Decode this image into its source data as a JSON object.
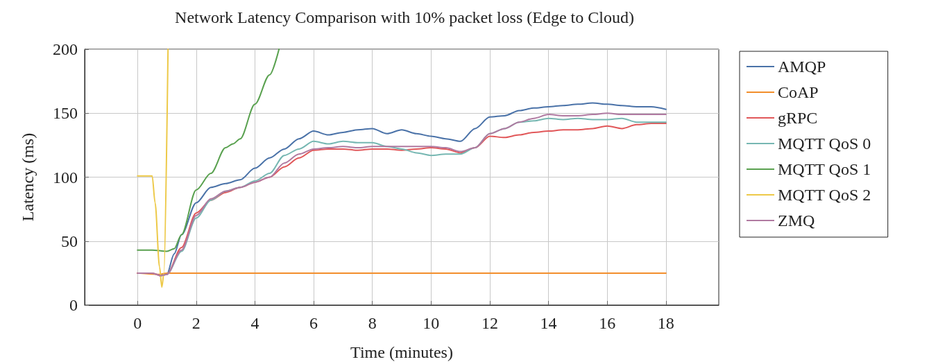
{
  "chart_data": {
    "type": "line",
    "title": "Network Latency Comparison with 10% packet loss (Edge to Cloud)",
    "xlabel": "Time (minutes)",
    "ylabel": "Latency (ms)",
    "xlim": [
      -1.8,
      19.8
    ],
    "xticks": [
      0,
      2,
      4,
      6,
      8,
      10,
      12,
      14,
      16,
      18
    ],
    "ylim": [
      0,
      200
    ],
    "yticks": [
      0,
      50,
      100,
      150,
      200
    ],
    "grid": true,
    "legend": "top right",
    "marker": "none",
    "line_style": "solid",
    "series": [
      {
        "name": "AMQP",
        "color": "#4a72a8",
        "x": [
          0.75,
          1,
          1.25,
          1.5,
          2,
          2.5,
          3,
          3.5,
          4,
          4.5,
          5,
          5.5,
          6,
          6.5,
          7,
          7.5,
          8,
          8.5,
          9,
          9.5,
          10,
          10.5,
          11,
          11.5,
          12,
          12.5,
          13,
          13.5,
          14,
          14.5,
          15,
          15.5,
          16,
          16.5,
          17,
          17.5,
          18
        ],
        "values": [
          23,
          24,
          40,
          55,
          80,
          92,
          95,
          98,
          107,
          115,
          122,
          130,
          136,
          133,
          135,
          137,
          138,
          134,
          137,
          134,
          132,
          130,
          128,
          138,
          147,
          148,
          152,
          154,
          155,
          156,
          157,
          158,
          157,
          156,
          155,
          155,
          153
        ]
      },
      {
        "name": "CoAP",
        "color": "#f28e2b",
        "x": [
          0,
          0.75,
          1,
          6,
          12,
          18
        ],
        "values": [
          25,
          24,
          25,
          25,
          25,
          25
        ]
      },
      {
        "name": "gRPC",
        "color": "#e15759",
        "x": [
          0,
          0.5,
          0.8,
          1,
          1.5,
          2,
          2.5,
          3,
          3.5,
          4,
          4.5,
          5,
          5.5,
          6,
          6.5,
          7,
          7.5,
          8,
          8.5,
          9,
          9.5,
          10,
          10.5,
          11,
          11.5,
          12,
          12.5,
          13,
          13.5,
          14,
          14.5,
          15,
          15.5,
          16,
          16.5,
          17,
          17.5,
          18
        ],
        "values": [
          25,
          25,
          23,
          24,
          45,
          72,
          82,
          88,
          92,
          96,
          100,
          108,
          115,
          121,
          122,
          122,
          121,
          122,
          122,
          121,
          122,
          123,
          122,
          119,
          123,
          132,
          131,
          133,
          135,
          136,
          137,
          137,
          138,
          140,
          138,
          141,
          142,
          142
        ]
      },
      {
        "name": "MQTT QoS 0",
        "color": "#76b7b2",
        "x": [
          0.8,
          1,
          1.5,
          2,
          2.5,
          3,
          3.5,
          4,
          4.5,
          5,
          5.5,
          6,
          6.5,
          7,
          7.5,
          8,
          8.5,
          9,
          9.5,
          10,
          10.5,
          11,
          11.5,
          12,
          12.5,
          13,
          13.5,
          14,
          14.5,
          15,
          15.5,
          16,
          16.5,
          17,
          17.5,
          18
        ],
        "values": [
          23,
          24,
          42,
          68,
          82,
          89,
          92,
          97,
          103,
          117,
          122,
          128,
          126,
          128,
          127,
          127,
          124,
          122,
          119,
          117,
          118,
          118,
          123,
          134,
          138,
          143,
          144,
          146,
          145,
          146,
          145,
          145,
          146,
          143,
          143,
          143
        ]
      },
      {
        "name": "MQTT QoS 1",
        "color": "#59a14f",
        "x": [
          0,
          0.5,
          1,
          1.25,
          1.5,
          2,
          2.5,
          3,
          3.25,
          3.5,
          4,
          4.5,
          4.82
        ],
        "values": [
          43,
          43,
          42,
          44,
          55,
          90,
          103,
          123,
          126,
          130,
          157,
          180,
          200
        ]
      },
      {
        "name": "MQTT QoS 2",
        "color": "#edc948",
        "x": [
          0,
          0.5,
          0.6,
          0.75,
          0.83,
          0.9,
          1.04
        ],
        "values": [
          101,
          101,
          80,
          30,
          14,
          25,
          200
        ]
      },
      {
        "name": "ZMQ",
        "color": "#b07aa1",
        "x": [
          0,
          0.5,
          0.8,
          1,
          1.5,
          2,
          2.5,
          3,
          3.5,
          4,
          4.5,
          5,
          5.5,
          6,
          6.5,
          7,
          7.5,
          8,
          8.5,
          9,
          9.5,
          10,
          10.5,
          11,
          11.5,
          12,
          12.5,
          13,
          13.5,
          14,
          14.5,
          15,
          15.5,
          16,
          16.5,
          17,
          17.5,
          18
        ],
        "values": [
          25,
          25,
          23,
          24,
          43,
          70,
          83,
          89,
          92,
          96,
          100,
          111,
          118,
          122,
          123,
          124,
          123,
          124,
          124,
          124,
          124,
          124,
          123,
          120,
          123,
          134,
          138,
          143,
          146,
          149,
          148,
          148,
          149,
          150,
          149,
          149,
          149,
          149
        ]
      }
    ]
  }
}
